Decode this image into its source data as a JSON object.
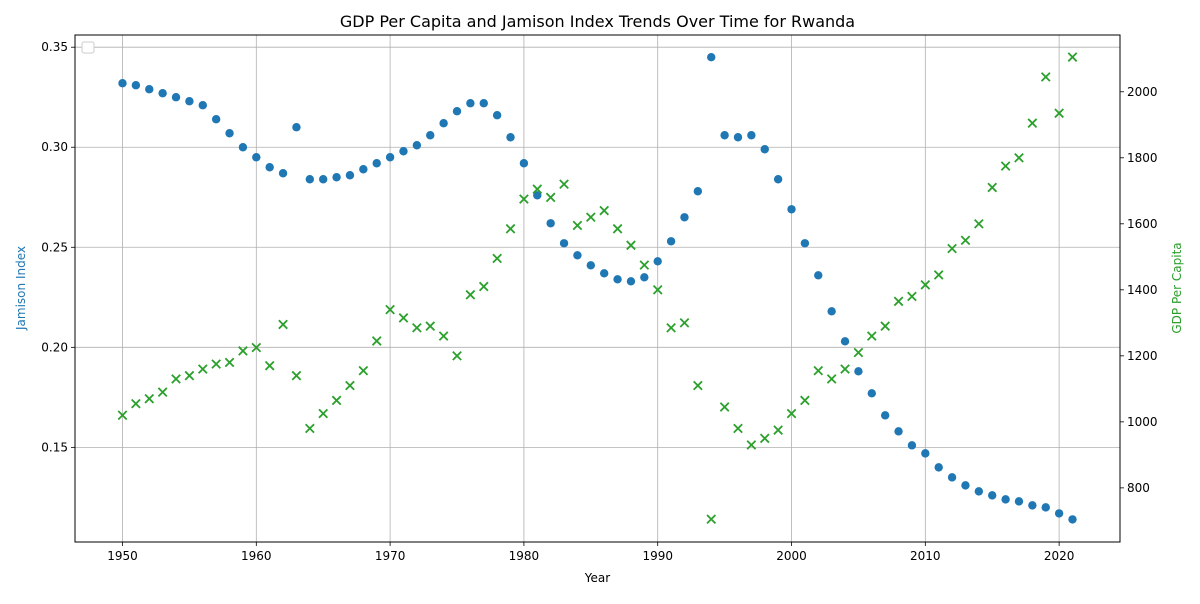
{
  "chart_data": {
    "type": "scatter",
    "title": "GDP Per Capita and Jamison Index Trends Over Time for Rwanda",
    "xlabel": "Year",
    "x_ticks": [
      1950,
      1960,
      1970,
      1980,
      1990,
      2000,
      2010,
      2020
    ],
    "xlim": [
      1946.45,
      2024.55
    ],
    "left_axis": {
      "label": "Jamison Index",
      "color": "#1f77b4",
      "ylim": [
        0.1027,
        0.3561
      ],
      "ticks": [
        0.15,
        0.2,
        0.25,
        0.3,
        0.35
      ],
      "tick_labels": [
        "0.15",
        "0.20",
        "0.25",
        "0.30",
        "0.35"
      ]
    },
    "right_axis": {
      "label": "GDP Per Capita",
      "color": "#2ca02c",
      "ylim": [
        636,
        2172
      ],
      "ticks": [
        800,
        1000,
        1200,
        1400,
        1600,
        1800,
        2000
      ],
      "tick_labels": [
        "800",
        "1000",
        "1200",
        "1400",
        "1600",
        "1800",
        "2000"
      ]
    },
    "grid": true,
    "legend": "top-left (empty)",
    "x": [
      1950,
      1951,
      1952,
      1953,
      1954,
      1955,
      1956,
      1957,
      1958,
      1959,
      1960,
      1961,
      1962,
      1963,
      1964,
      1965,
      1966,
      1967,
      1968,
      1969,
      1970,
      1971,
      1972,
      1973,
      1974,
      1975,
      1976,
      1977,
      1978,
      1979,
      1980,
      1981,
      1982,
      1983,
      1984,
      1985,
      1986,
      1987,
      1988,
      1989,
      1990,
      1991,
      1992,
      1993,
      1994,
      1995,
      1996,
      1997,
      1998,
      1999,
      2000,
      2001,
      2002,
      2003,
      2004,
      2005,
      2006,
      2007,
      2008,
      2009,
      2010,
      2011,
      2012,
      2013,
      2014,
      2015,
      2016,
      2017,
      2018,
      2019,
      2020,
      2021
    ],
    "series": [
      {
        "name": "Jamison Index",
        "axis": "left",
        "marker": "circle",
        "color": "#1f77b4",
        "values": [
          0.332,
          0.331,
          0.329,
          0.327,
          0.325,
          0.323,
          0.321,
          0.314,
          0.307,
          0.3,
          0.295,
          0.29,
          0.287,
          0.31,
          0.284,
          0.284,
          0.285,
          0.286,
          0.289,
          0.292,
          0.295,
          0.298,
          0.301,
          0.306,
          0.312,
          0.318,
          0.322,
          0.322,
          0.316,
          0.305,
          0.292,
          0.276,
          0.262,
          0.252,
          0.246,
          0.241,
          0.237,
          0.234,
          0.233,
          0.235,
          0.243,
          0.253,
          0.265,
          0.278,
          0.345,
          0.306,
          0.305,
          0.306,
          0.299,
          0.284,
          0.269,
          0.252,
          0.236,
          0.218,
          0.203,
          0.188,
          0.177,
          0.166,
          0.158,
          0.151,
          0.147,
          0.14,
          0.135,
          0.131,
          0.128,
          0.126,
          0.124,
          0.123,
          0.121,
          0.12,
          0.117,
          0.114
        ]
      },
      {
        "name": "GDP Per Capita",
        "axis": "right",
        "marker": "x",
        "color": "#2ca02c",
        "values": [
          1020,
          1055,
          1070,
          1090,
          1130,
          1140,
          1160,
          1175,
          1180,
          1215,
          1225,
          1170,
          1295,
          1140,
          980,
          1025,
          1065,
          1110,
          1155,
          1245,
          1340,
          1315,
          1285,
          1290,
          1260,
          1200,
          1385,
          1410,
          1495,
          1585,
          1675,
          1705,
          1680,
          1720,
          1595,
          1620,
          1640,
          1585,
          1535,
          1475,
          1400,
          1285,
          1300,
          1110,
          705,
          1045,
          980,
          930,
          950,
          975,
          1025,
          1065,
          1155,
          1130,
          1160,
          1210,
          1260,
          1290,
          1365,
          1380,
          1415,
          1445,
          1525,
          1550,
          1600,
          1710,
          1775,
          1800,
          1905,
          2045,
          1935,
          2105
        ]
      }
    ]
  }
}
